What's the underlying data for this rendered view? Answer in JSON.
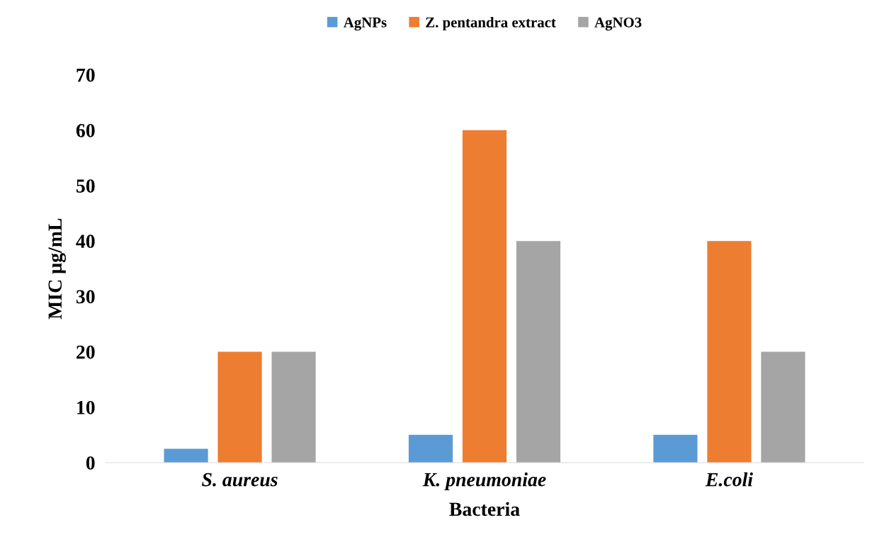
{
  "chart_data": {
    "type": "bar",
    "xlabel": "Bacteria",
    "ylabel": "MIC µg/mL",
    "categories": [
      "S. aureus",
      "K. pneumoniae",
      "E.coli"
    ],
    "series": [
      {
        "name": "AgNPs",
        "color": "#5b9bd5",
        "values": [
          2.5,
          5,
          5
        ]
      },
      {
        "name": "Z. pentandra extract",
        "color": "#ed7d31",
        "values": [
          20,
          60,
          40
        ]
      },
      {
        "name": "AgNO3",
        "color": "#a5a5a5",
        "values": [
          20,
          40,
          20
        ]
      }
    ],
    "ylim": [
      0,
      70
    ],
    "yticks": [
      0,
      10,
      20,
      30,
      40,
      50,
      60,
      70
    ],
    "grid": false,
    "legend": "top"
  }
}
